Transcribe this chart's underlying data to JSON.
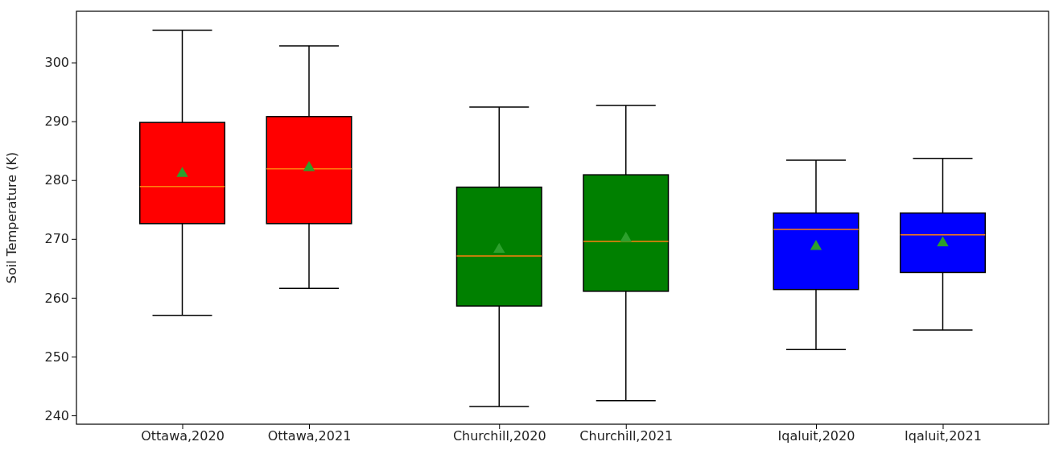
{
  "chart_data": {
    "type": "box",
    "ylabel": "Soil Temperature (K)",
    "categories": [
      "Ottawa,2020",
      "Ottawa,2021",
      "Churchill,2020",
      "Churchill,2021",
      "Iqaluit,2020",
      "Iqaluit,2021"
    ],
    "colors": [
      "#ff0000",
      "#ff0000",
      "#008000",
      "#008000",
      "#0000ff",
      "#0000ff"
    ],
    "boxes": [
      {
        "low": 257.0,
        "q1": 272.6,
        "median": 278.9,
        "q3": 289.8,
        "high": 305.5,
        "mean": 281.1
      },
      {
        "low": 261.6,
        "q1": 272.6,
        "median": 281.9,
        "q3": 290.8,
        "high": 302.8,
        "mean": 282.1
      },
      {
        "low": 241.5,
        "q1": 258.6,
        "median": 267.1,
        "q3": 278.8,
        "high": 292.4,
        "mean": 268.2
      },
      {
        "low": 242.5,
        "q1": 261.1,
        "median": 269.6,
        "q3": 280.9,
        "high": 292.7,
        "mean": 270.1
      },
      {
        "low": 251.2,
        "q1": 261.4,
        "median": 271.6,
        "q3": 274.4,
        "high": 283.4,
        "mean": 268.7
      },
      {
        "low": 254.5,
        "q1": 264.3,
        "median": 270.7,
        "q3": 274.4,
        "high": 283.7,
        "mean": 269.3
      }
    ],
    "ylim": [
      238.5,
      308.7
    ],
    "yticks": [
      240,
      250,
      260,
      270,
      280,
      290,
      300
    ],
    "marker": "triangle",
    "grid": false
  }
}
